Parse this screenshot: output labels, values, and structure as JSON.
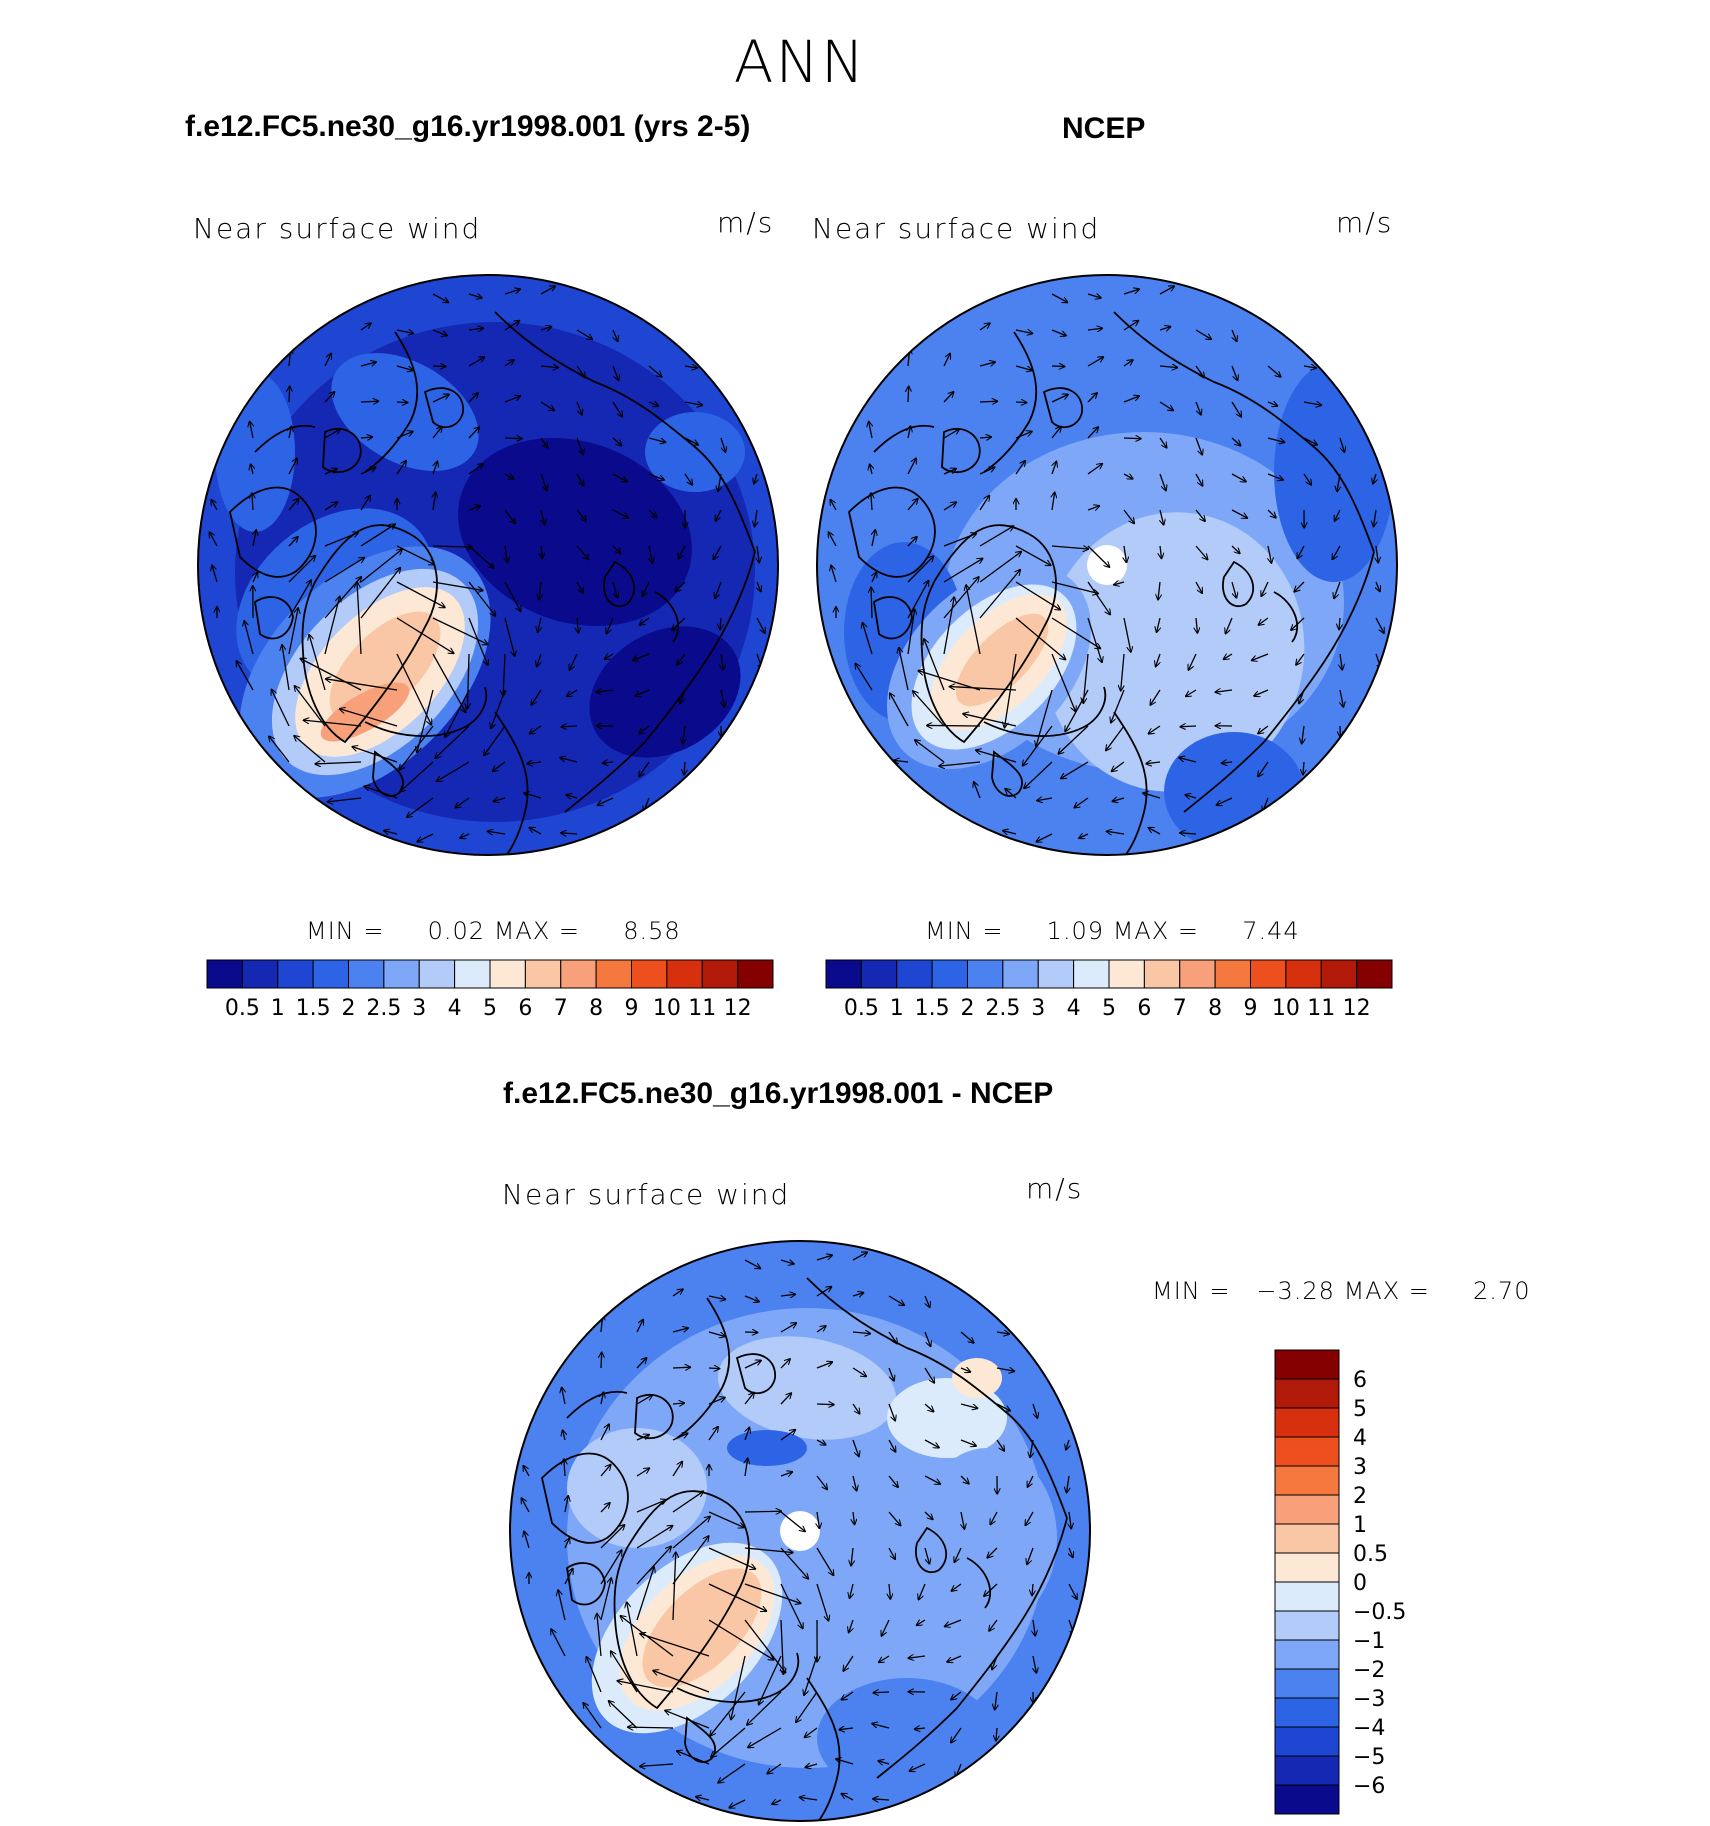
{
  "main_title": "ANN",
  "units": "m/s",
  "colors": {
    "abs_scale": [
      "#0a0a8c",
      "#1428b4",
      "#1e46d2",
      "#2d64e6",
      "#4b82f0",
      "#7ea8f7",
      "#b2cbf9",
      "#dcebfc",
      "#fde8d6",
      "#f9c6a6",
      "#f7a07a",
      "#f5783f",
      "#ee4f1e",
      "#d7300f",
      "#b11a08",
      "#850000"
    ],
    "diff_scale": [
      "#0a0a8c",
      "#1428b4",
      "#1e46d2",
      "#2d64e6",
      "#4b82f0",
      "#7ea8f7",
      "#b2cbf9",
      "#dcebfc",
      "#fde8d6",
      "#f9c6a6",
      "#f7a07a",
      "#f5783f",
      "#ee4f1e",
      "#d7300f",
      "#b11a08",
      "#850000"
    ]
  },
  "chart_data": [
    {
      "type": "heatmap",
      "projection": "north-polar-stereographic",
      "title": "f.e12.FC5.ne30_g16.yr1998.001 (yrs 2-5)",
      "variable": "Near surface wind",
      "units": "m/s",
      "min_label": "MIN =",
      "min": "0.02",
      "max_label": "MAX =",
      "max": "8.58",
      "colorbar_ticks": [
        "0.5",
        "1",
        "1.5",
        "2",
        "2.5",
        "3",
        "4",
        "5",
        "6",
        "7",
        "8",
        "9",
        "10",
        "11",
        "12"
      ],
      "colorbar_orientation": "horizontal",
      "overlay": "wind vectors, coastlines"
    },
    {
      "type": "heatmap",
      "projection": "north-polar-stereographic",
      "title": "NCEP",
      "variable": "Near surface wind",
      "units": "m/s",
      "min_label": "MIN =",
      "min": "1.09",
      "max_label": "MAX =",
      "max": "7.44",
      "colorbar_ticks": [
        "0.5",
        "1",
        "1.5",
        "2",
        "2.5",
        "3",
        "4",
        "5",
        "6",
        "7",
        "8",
        "9",
        "10",
        "11",
        "12"
      ],
      "colorbar_orientation": "horizontal",
      "overlay": "wind vectors, coastlines"
    },
    {
      "type": "heatmap",
      "projection": "north-polar-stereographic",
      "title": "f.e12.FC5.ne30_g16.yr1998.001 - NCEP",
      "variable": "Near surface wind",
      "units": "m/s",
      "min_label": "MIN =",
      "min": "−3.28",
      "max_label": "MAX =",
      "max": "2.70",
      "colorbar_ticks": [
        "6",
        "5",
        "4",
        "3",
        "2",
        "1",
        "0.5",
        "0",
        "−0.5",
        "−1",
        "−2",
        "−3",
        "−4",
        "−5",
        "−6"
      ],
      "colorbar_orientation": "vertical",
      "overlay": "wind vectors, coastlines"
    }
  ]
}
